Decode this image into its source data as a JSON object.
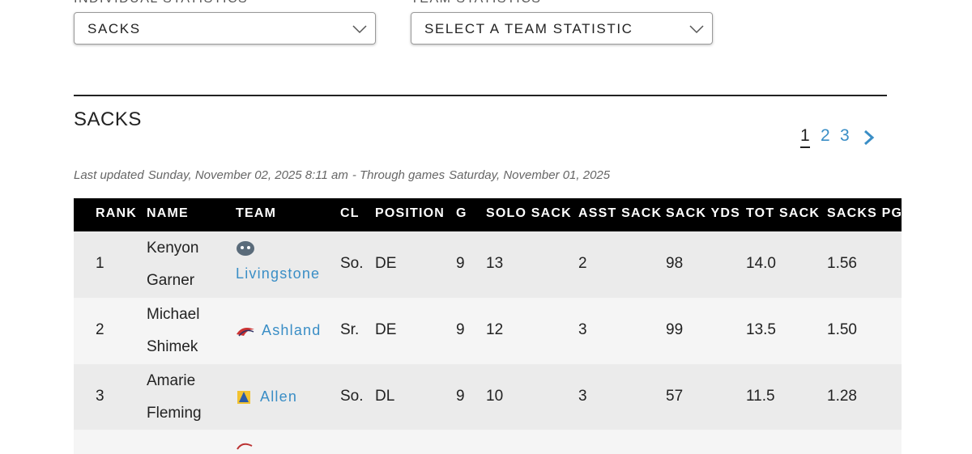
{
  "filters": {
    "individual": {
      "label": "INDIVIDUAL STATISTICS",
      "value": "SACKS"
    },
    "team": {
      "label": "TEAM STATISTICS",
      "value": "SELECT A TEAM STATISTIC"
    }
  },
  "section_title": "SACKS",
  "pagination": [
    "1",
    "2",
    "3"
  ],
  "updated": {
    "label": "Last updated",
    "date": "Sunday, November 02, 2025 8:11 am",
    "through_label": "- Through games",
    "through_date": "Saturday, November 01, 2025"
  },
  "table": {
    "headers": [
      "RANK",
      "NAME",
      "TEAM",
      "CL",
      "POSITION",
      "G",
      "SOLO SACK",
      "ASST SACK",
      "SACK YDS",
      "TOT SACK",
      "SACKS PG"
    ],
    "rows": [
      [
        "1",
        "Kenyon Garner",
        "Livingstone",
        "So.",
        "DE",
        "9",
        "13",
        "2",
        "98",
        "14.0",
        "1.56"
      ],
      [
        "2",
        "Michael Shimek",
        "Ashland",
        "Sr.",
        "DE",
        "9",
        "12",
        "3",
        "99",
        "13.5",
        "1.50"
      ],
      [
        "3",
        "Amarie Fleming",
        "Allen",
        "So.",
        "DL",
        "9",
        "10",
        "3",
        "57",
        "11.5",
        "1.28"
      ]
    ]
  }
}
